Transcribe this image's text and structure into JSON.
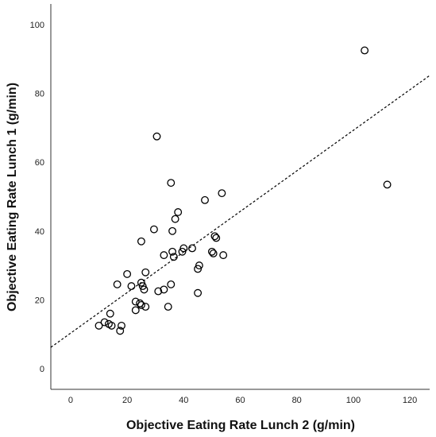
{
  "chart_data": {
    "type": "scatter",
    "title": "",
    "xlabel": "Objective Eating Rate Lunch 2 (g/min)",
    "ylabel": "Objective Eating Rate Lunch 1 (g/min)",
    "xlim": [
      -7,
      127
    ],
    "ylim": [
      -6,
      106
    ],
    "x_ticks": [
      0,
      20,
      40,
      60,
      80,
      100,
      120
    ],
    "y_ticks": [
      0,
      20,
      40,
      60,
      80,
      100
    ],
    "grid": false,
    "legend": "none",
    "marker": "open-circle",
    "fit_line": {
      "style": "dashed",
      "color": "#000000",
      "x": [
        -7,
        127
      ],
      "y": [
        6.2,
        85.2
      ]
    },
    "points": [
      {
        "x": 104.0,
        "y": 92.5
      },
      {
        "x": 112.0,
        "y": 53.5
      },
      {
        "x": 30.5,
        "y": 67.5
      },
      {
        "x": 35.5,
        "y": 54.0
      },
      {
        "x": 53.5,
        "y": 51.0
      },
      {
        "x": 47.5,
        "y": 49.0
      },
      {
        "x": 38.0,
        "y": 45.5
      },
      {
        "x": 37.0,
        "y": 43.5
      },
      {
        "x": 29.5,
        "y": 40.5
      },
      {
        "x": 36.0,
        "y": 40.0
      },
      {
        "x": 51.0,
        "y": 38.5
      },
      {
        "x": 51.5,
        "y": 38.0
      },
      {
        "x": 25.0,
        "y": 37.0
      },
      {
        "x": 40.0,
        "y": 35.0
      },
      {
        "x": 43.0,
        "y": 35.0
      },
      {
        "x": 39.5,
        "y": 34.0
      },
      {
        "x": 36.0,
        "y": 34.0
      },
      {
        "x": 50.0,
        "y": 34.0
      },
      {
        "x": 50.5,
        "y": 33.5
      },
      {
        "x": 33.0,
        "y": 33.0
      },
      {
        "x": 36.5,
        "y": 32.5
      },
      {
        "x": 54.0,
        "y": 33.0
      },
      {
        "x": 45.5,
        "y": 30.0
      },
      {
        "x": 45.0,
        "y": 29.0
      },
      {
        "x": 20.0,
        "y": 27.5
      },
      {
        "x": 26.5,
        "y": 28.0
      },
      {
        "x": 25.0,
        "y": 25.0
      },
      {
        "x": 35.5,
        "y": 24.5
      },
      {
        "x": 16.5,
        "y": 24.5
      },
      {
        "x": 21.5,
        "y": 24.0
      },
      {
        "x": 25.5,
        "y": 24.0
      },
      {
        "x": 26.0,
        "y": 23.0
      },
      {
        "x": 33.0,
        "y": 23.0
      },
      {
        "x": 31.0,
        "y": 22.5
      },
      {
        "x": 45.0,
        "y": 22.0
      },
      {
        "x": 23.0,
        "y": 19.5
      },
      {
        "x": 24.5,
        "y": 19.0
      },
      {
        "x": 25.0,
        "y": 18.5
      },
      {
        "x": 26.5,
        "y": 18.0
      },
      {
        "x": 34.5,
        "y": 18.0
      },
      {
        "x": 23.0,
        "y": 17.0
      },
      {
        "x": 14.0,
        "y": 16.0
      },
      {
        "x": 12.0,
        "y": 13.5
      },
      {
        "x": 13.5,
        "y": 13.0
      },
      {
        "x": 10.0,
        "y": 12.5
      },
      {
        "x": 14.5,
        "y": 12.5
      },
      {
        "x": 18.0,
        "y": 12.5
      },
      {
        "x": 17.5,
        "y": 11.0
      }
    ]
  }
}
